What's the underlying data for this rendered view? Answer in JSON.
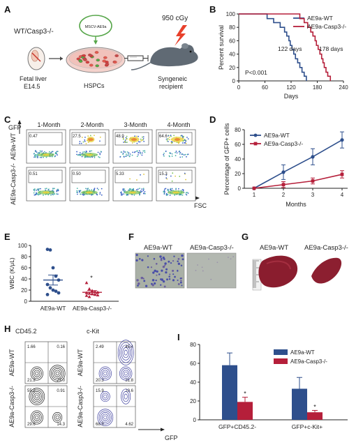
{
  "panels": {
    "A": {
      "label": "A",
      "genotype": "WT/Casp3-/-",
      "virus": "MSCV-AE9a",
      "dose": "950 cGy",
      "source_line1": "Fetal liver",
      "source_line2": "E14.5",
      "cells": "HSPCs",
      "recipient_line1": "Syngeneic",
      "recipient_line2": "recipient"
    },
    "B": {
      "label": "B"
    },
    "C": {
      "label": "C",
      "y_axis": "GFP",
      "x_axis": "FSC",
      "months": [
        "1-Month",
        "2-Month",
        "3-Month",
        "4-Month"
      ],
      "rows": [
        {
          "name": "AE9a-WT",
          "values": [
            "0.47",
            "27.5",
            "48.9",
            "64.6"
          ]
        },
        {
          "name": "AE9a-Casp3-/-",
          "values": [
            "0.51",
            "0.50",
            "5.33",
            "15.3"
          ]
        }
      ]
    },
    "D": {
      "label": "D"
    },
    "E": {
      "label": "E"
    },
    "F": {
      "label": "F",
      "left_title": "AE9a-WT",
      "right_title": "AE9a-Casp3-/-"
    },
    "G": {
      "label": "G",
      "left_title": "AE9a-WT",
      "right_title": "AE9a-Casp3-/-"
    },
    "H": {
      "label": "H",
      "left_y": "CD45.2",
      "right_y": "c-Kit",
      "x_axis": "GFP",
      "row_labels": [
        "AE9a-WT",
        "AE9a-Casp3-/-"
      ],
      "cd45": [
        {
          "tl": "1.66",
          "tr": "0.16",
          "bl": "21.2",
          "br": "77.0"
        },
        {
          "tl": "55.2",
          "tr": "0.91",
          "bl": "29.6",
          "br": "14.3"
        }
      ],
      "ckit": [
        {
          "tl": "2.49",
          "tr": "45.4",
          "bl": "20.3",
          "br": "31.8"
        },
        {
          "tl": "15.9",
          "tr": "10.6",
          "bl": "68.9",
          "br": "4.62"
        }
      ]
    },
    "I": {
      "label": "I"
    }
  },
  "chart_data": [
    {
      "id": "B",
      "type": "line",
      "ylabel": "Percent survival",
      "xlabel": "Days",
      "xlim": [
        0,
        240
      ],
      "ylim": [
        0,
        100
      ],
      "xticks": [
        0,
        60,
        120,
        180,
        240
      ],
      "yticks": [
        0,
        20,
        40,
        60,
        80,
        100
      ],
      "annotations": [
        "122 days",
        "178 days",
        "P<0.001"
      ],
      "legend_position": "top-right",
      "series": [
        {
          "name": "AE9a-WT",
          "color": "#2e4f8c",
          "steps": [
            [
              0,
              100
            ],
            [
              60,
              100
            ],
            [
              65,
              93
            ],
            [
              80,
              87
            ],
            [
              95,
              80
            ],
            [
              105,
              73
            ],
            [
              110,
              67
            ],
            [
              115,
              60
            ],
            [
              118,
              53
            ],
            [
              122,
              47
            ],
            [
              126,
              40
            ],
            [
              130,
              33
            ],
            [
              135,
              27
            ],
            [
              140,
              20
            ],
            [
              145,
              13
            ],
            [
              150,
              7
            ],
            [
              155,
              0
            ]
          ]
        },
        {
          "name": "AE9a-Casp3-/-",
          "color": "#b51f3a",
          "steps": [
            [
              0,
              100
            ],
            [
              130,
              100
            ],
            [
              140,
              93
            ],
            [
              150,
              87
            ],
            [
              158,
              80
            ],
            [
              165,
              73
            ],
            [
              170,
              67
            ],
            [
              175,
              60
            ],
            [
              178,
              53
            ],
            [
              182,
              47
            ],
            [
              186,
              40
            ],
            [
              190,
              33
            ],
            [
              193,
              27
            ],
            [
              196,
              20
            ],
            [
              200,
              13
            ],
            [
              204,
              7
            ],
            [
              210,
              0
            ]
          ]
        }
      ]
    },
    {
      "id": "D",
      "type": "line",
      "ylabel": "Percentage of GFP+ cells",
      "xlabel": "Months",
      "categories": [
        1,
        2,
        3,
        4
      ],
      "ylim": [
        0,
        80
      ],
      "yticks": [
        0,
        20,
        40,
        60,
        80
      ],
      "legend_position": "top-left",
      "series": [
        {
          "name": "AE9a-WT",
          "color": "#2e4f8c",
          "values": [
            0,
            22,
            43,
            66
          ],
          "errors": [
            0,
            10,
            11,
            11
          ]
        },
        {
          "name": "AE9a-Casp3-/-",
          "color": "#b51f3a",
          "values": [
            0,
            5,
            10,
            19
          ],
          "errors": [
            0,
            4,
            4,
            5
          ]
        }
      ]
    },
    {
      "id": "E",
      "type": "scatter",
      "ylabel": "WBC (K/μL)",
      "categories": [
        "AE9a-WT",
        "AE9a-Casp3-/-"
      ],
      "ylim": [
        0,
        100
      ],
      "yticks": [
        0,
        20,
        40,
        60,
        80,
        100
      ],
      "annotations": [
        "*"
      ],
      "groups": [
        {
          "name": "AE9a-WT",
          "color": "#2e4f8c",
          "mean": 38,
          "sem": 9,
          "values": [
            93,
            92,
            60,
            45,
            38,
            30,
            24,
            20,
            18,
            15,
            12
          ]
        },
        {
          "name": "AE9a-Casp3-/-",
          "color": "#b51f3a",
          "mean": 16,
          "sem": 3,
          "values": [
            33,
            22,
            19,
            17,
            16,
            15,
            14,
            13,
            12,
            11,
            10,
            8
          ]
        }
      ]
    },
    {
      "id": "I",
      "type": "bar",
      "categories": [
        "GFP+CD45.2-",
        "GFP+c-Kit+"
      ],
      "ylim": [
        0,
        80
      ],
      "yticks": [
        0,
        20,
        40,
        60,
        80
      ],
      "annotations": [
        "*",
        "*"
      ],
      "legend_position": "top-right",
      "series": [
        {
          "name": "AE9a-WT",
          "color": "#2e4f8c",
          "values": [
            58,
            33
          ],
          "errors": [
            13,
            12
          ]
        },
        {
          "name": "AE9a-Casp3-/-",
          "color": "#b51f3a",
          "values": [
            19,
            8
          ],
          "errors": [
            5,
            2
          ]
        }
      ]
    }
  ]
}
